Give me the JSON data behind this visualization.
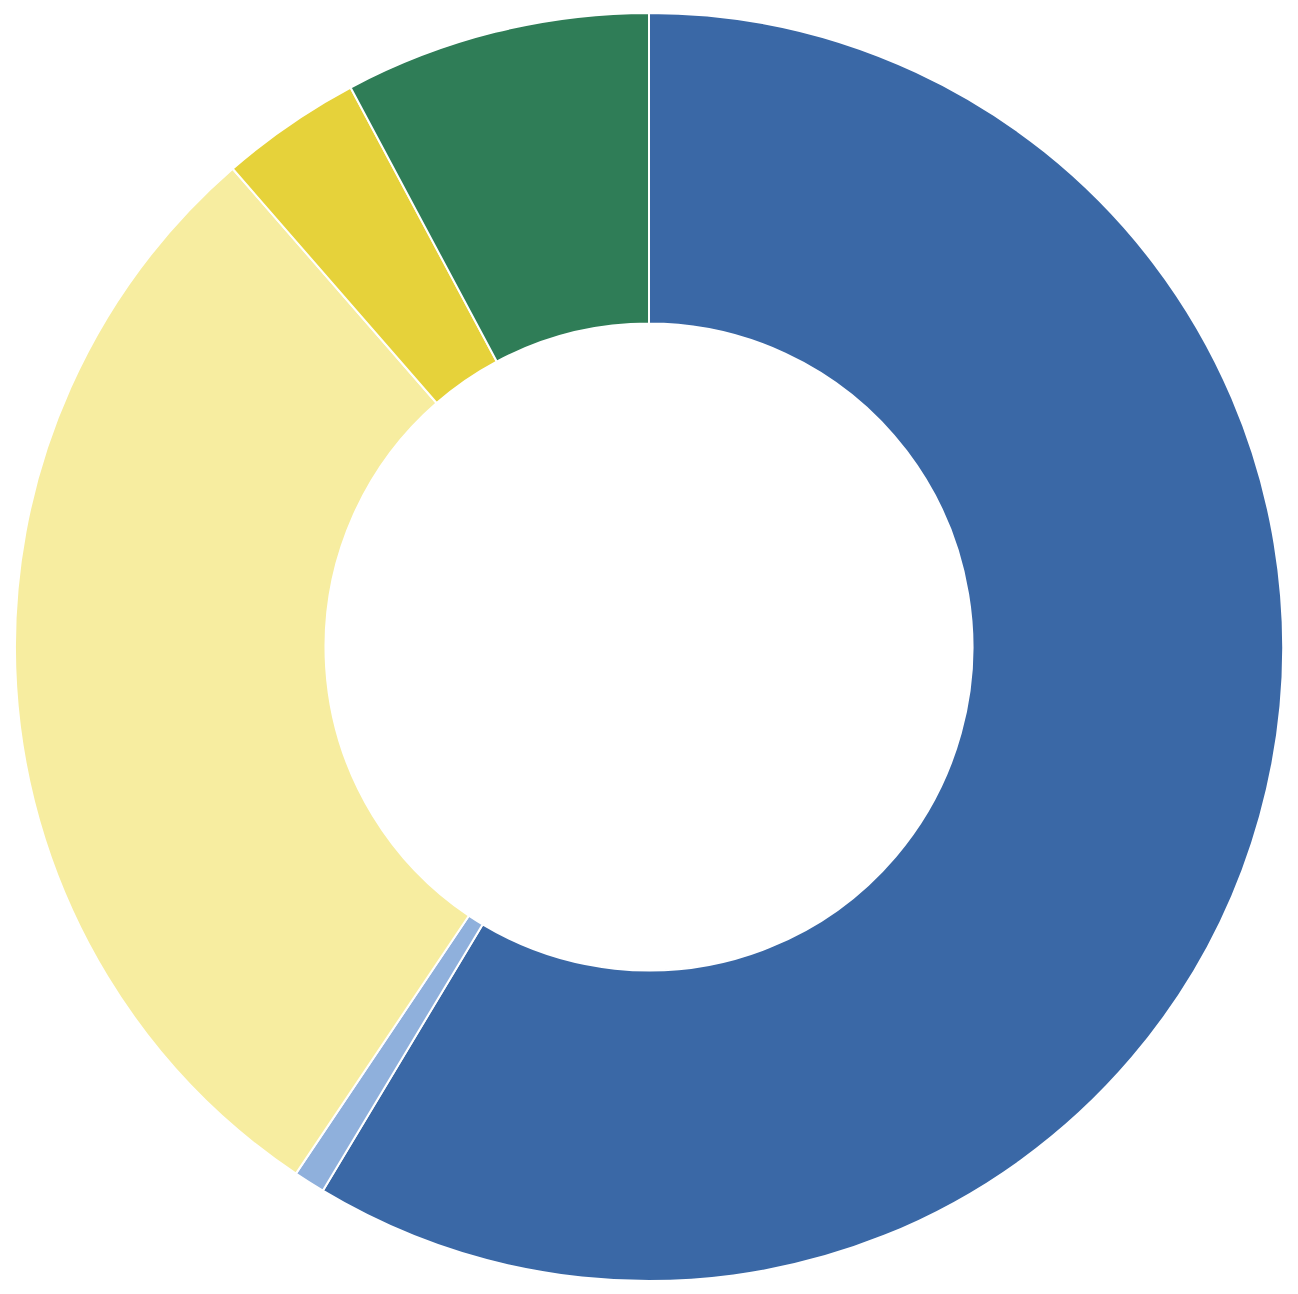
{
  "chart_data": {
    "type": "donut",
    "categories": [
      null,
      null,
      null,
      null,
      null
    ],
    "values": [
      58.6,
      0.8,
      29.2,
      3.6,
      7.8
    ],
    "colors": [
      "#3a68a6",
      "#8fb0dc",
      "#f7eda0",
      "#e6d23a",
      "#2f7d57"
    ]
  }
}
